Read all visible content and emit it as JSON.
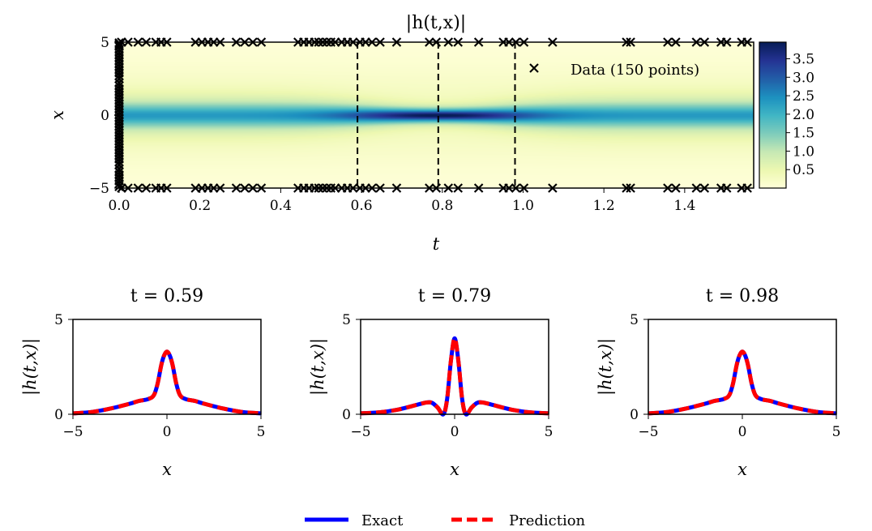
{
  "chart_data": [
    {
      "type": "heatmap",
      "title": "|h(t,x)|",
      "xlabel": "t",
      "ylabel": "x",
      "xlim": [
        0,
        1.5708
      ],
      "ylim": [
        -5,
        5
      ],
      "xticks": [
        "0.0",
        "0.2",
        "0.4",
        "0.6",
        "0.8",
        "1.0",
        "1.2",
        "1.4"
      ],
      "xtick_values": [
        0,
        0.2,
        0.4,
        0.6,
        0.8,
        1.0,
        1.2,
        1.4
      ],
      "yticks": [
        "−5",
        "0",
        "5"
      ],
      "ytick_values": [
        -5,
        0,
        5
      ],
      "colormap": "YlGnBu",
      "colorbar": {
        "range": [
          0,
          3.95
        ],
        "ticks": [
          "0.5",
          "1.0",
          "1.5",
          "2.0",
          "2.5",
          "3.0",
          "3.5"
        ],
        "tick_values": [
          0.5,
          1,
          1.5,
          2,
          2.5,
          3,
          3.5
        ]
      },
      "slice_lines_t": [
        0.59,
        0.79,
        0.98
      ],
      "legend": {
        "label": "Data (150 points)",
        "marker": "×",
        "placement": "top-right"
      },
      "data_points": {
        "initial_t0_x": [
          -4.9,
          -4.7,
          -4.5,
          -4.3,
          -4.1,
          -3.9,
          -3.7,
          -3.4,
          -3.2,
          -3.0,
          -2.8,
          -2.6,
          -2.4,
          -2.2,
          -2.0,
          -1.8,
          -1.6,
          -1.4,
          -1.2,
          -1.0,
          -0.8,
          -0.6,
          -0.4,
          -0.2,
          0.0,
          0.2,
          0.4,
          0.6,
          0.8,
          1.0,
          1.2,
          1.4,
          1.6,
          1.8,
          2.0,
          2.2,
          2.5,
          2.7,
          2.9,
          3.1,
          3.3,
          3.5,
          3.7,
          3.9,
          4.1,
          4.3,
          4.5,
          4.7,
          4.85,
          4.95
        ],
        "boundary_t": [
          0.006,
          0.022,
          0.047,
          0.067,
          0.091,
          0.104,
          0.118,
          0.189,
          0.205,
          0.22,
          0.234,
          0.25,
          0.29,
          0.311,
          0.331,
          0.352,
          0.443,
          0.457,
          0.47,
          0.484,
          0.494,
          0.504,
          0.514,
          0.524,
          0.535,
          0.551,
          0.565,
          0.579,
          0.596,
          0.61,
          0.626,
          0.646,
          0.687,
          0.768,
          0.785,
          0.815,
          0.839,
          0.89,
          0.951,
          0.965,
          0.982,
          1.002,
          1.073,
          1.256,
          1.266,
          1.358,
          1.378,
          1.429,
          1.449,
          1.49,
          1.504,
          1.541,
          1.555
        ]
      }
    },
    {
      "type": "line",
      "title": "t = 0.59",
      "xlabel": "x",
      "ylabel": "|h(t,x)|",
      "xlim": [
        -5,
        5
      ],
      "ylim": [
        0,
        5
      ],
      "xticks": [
        "−5",
        "0",
        "5"
      ],
      "yticks": [
        "0",
        "5"
      ],
      "x": [
        -5,
        -4,
        -3,
        -2,
        -1.5,
        -1,
        -0.7,
        -0.5,
        -0.3,
        -0.15,
        0,
        0.15,
        0.3,
        0.5,
        0.7,
        1,
        1.5,
        2,
        3,
        4,
        5
      ],
      "series": [
        {
          "name": "Exact",
          "style": "solid",
          "color": "#0000ff",
          "values": [
            0.05,
            0.12,
            0.3,
            0.55,
            0.7,
            0.8,
            1.0,
            1.6,
            2.6,
            3.1,
            3.3,
            3.1,
            2.6,
            1.6,
            1.0,
            0.8,
            0.7,
            0.55,
            0.3,
            0.12,
            0.05
          ]
        },
        {
          "name": "Prediction",
          "style": "dashed",
          "color": "#ff0000",
          "values": [
            0.05,
            0.12,
            0.3,
            0.55,
            0.7,
            0.8,
            1.0,
            1.6,
            2.6,
            3.1,
            3.3,
            3.1,
            2.6,
            1.6,
            1.0,
            0.8,
            0.7,
            0.55,
            0.3,
            0.12,
            0.05
          ]
        }
      ]
    },
    {
      "type": "line",
      "title": "t = 0.79",
      "xlabel": "x",
      "ylabel": "|h(t,x)|",
      "xlim": [
        -5,
        5
      ],
      "ylim": [
        0,
        5
      ],
      "xticks": [
        "−5",
        "0",
        "5"
      ],
      "yticks": [
        "0",
        "5"
      ],
      "x": [
        -5,
        -4,
        -3,
        -2,
        -1.5,
        -1.2,
        -0.9,
        -0.6,
        -0.4,
        -0.2,
        0,
        0.2,
        0.4,
        0.6,
        0.9,
        1.2,
        1.5,
        2,
        3,
        4,
        5
      ],
      "series": [
        {
          "name": "Exact",
          "style": "solid",
          "color": "#0000ff",
          "values": [
            0.05,
            0.1,
            0.25,
            0.5,
            0.62,
            0.6,
            0.35,
            0.0,
            0.8,
            2.8,
            4.0,
            2.8,
            0.8,
            0.0,
            0.35,
            0.6,
            0.62,
            0.5,
            0.25,
            0.1,
            0.05
          ]
        },
        {
          "name": "Prediction",
          "style": "dashed",
          "color": "#ff0000",
          "values": [
            0.05,
            0.1,
            0.25,
            0.5,
            0.62,
            0.6,
            0.35,
            0.0,
            0.8,
            2.8,
            4.0,
            2.8,
            0.8,
            0.0,
            0.35,
            0.6,
            0.62,
            0.5,
            0.25,
            0.1,
            0.05
          ]
        }
      ]
    },
    {
      "type": "line",
      "title": "t = 0.98",
      "xlabel": "x",
      "ylabel": "|h(t,x)|",
      "xlim": [
        -5,
        5
      ],
      "ylim": [
        0,
        5
      ],
      "xticks": [
        "−5",
        "0",
        "5"
      ],
      "yticks": [
        "0",
        "5"
      ],
      "x": [
        -5,
        -4,
        -3,
        -2,
        -1.5,
        -1,
        -0.7,
        -0.5,
        -0.3,
        -0.15,
        0,
        0.15,
        0.3,
        0.5,
        0.7,
        1,
        1.5,
        2,
        3,
        4,
        5
      ],
      "series": [
        {
          "name": "Exact",
          "style": "solid",
          "color": "#0000ff",
          "values": [
            0.05,
            0.12,
            0.3,
            0.55,
            0.7,
            0.8,
            1.0,
            1.6,
            2.6,
            3.1,
            3.3,
            3.1,
            2.6,
            1.6,
            1.0,
            0.8,
            0.7,
            0.55,
            0.3,
            0.12,
            0.05
          ]
        },
        {
          "name": "Prediction",
          "style": "dashed",
          "color": "#ff0000",
          "values": [
            0.05,
            0.12,
            0.3,
            0.55,
            0.7,
            0.8,
            1.0,
            1.6,
            2.6,
            3.1,
            3.3,
            3.1,
            2.6,
            1.6,
            1.0,
            0.8,
            0.7,
            0.55,
            0.3,
            0.12,
            0.05
          ]
        }
      ]
    }
  ],
  "legend": {
    "exact_label": "Exact",
    "prediction_label": "Prediction",
    "exact_color": "#0000ff",
    "prediction_color": "#ff0000"
  }
}
